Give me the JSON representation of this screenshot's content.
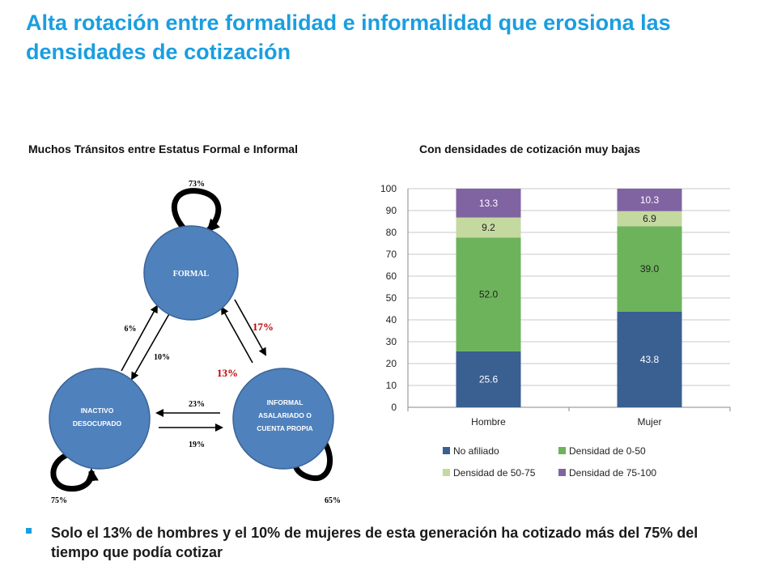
{
  "title": "Alta rotación entre formalidad e informalidad que erosiona las densidades de cotización",
  "left_panel": {
    "subtitle": "Muchos Tránsitos entre Estatus Formal e Informal",
    "nodes": {
      "formal": "FORMAL",
      "inactive_line1": "INACTIVO",
      "inactive_line2": "DESOCUPADO",
      "informal_line1": "INFORMAL",
      "informal_line2": "ASALARIADO O",
      "informal_line3": "CUENTA PROPIA"
    },
    "flows": {
      "formal_stay": "73%",
      "inactive_stay": "75%",
      "informal_stay": "65%",
      "inactive_to_formal": "6%",
      "formal_to_inactive": "10%",
      "formal_to_informal": "17%",
      "informal_to_formal": "13%",
      "informal_to_inactive": "23%",
      "inactive_to_informal": "19%"
    },
    "colors": {
      "node": "#4f81bd",
      "node_stroke": "#3a6496",
      "highlight": "#c00000"
    }
  },
  "right_panel": {
    "subtitle": "Con densidades de cotización muy bajas"
  },
  "chart_data": {
    "type": "bar",
    "stacked": true,
    "categories": [
      "Hombre",
      "Mujer"
    ],
    "series": [
      {
        "name": "No afiliado",
        "values": [
          25.6,
          43.8
        ],
        "color": "#3a5f91"
      },
      {
        "name": "Densidad de 0-50",
        "values": [
          52.0,
          39.0
        ],
        "color": "#6db35b"
      },
      {
        "name": "Densidad de 50-75",
        "values": [
          9.2,
          6.9
        ],
        "color": "#c4d9a0"
      },
      {
        "name": "Densidad de 75-100",
        "values": [
          13.3,
          10.3
        ],
        "color": "#8064a2"
      }
    ],
    "y_ticks": [
      0,
      10,
      20,
      30,
      40,
      50,
      60,
      70,
      80,
      90,
      100
    ],
    "ylim": [
      0,
      100
    ],
    "grid": true,
    "legend_position": "bottom"
  },
  "bullet": {
    "text": "Solo el 13% de hombres y el 10% de mujeres de esta generación ha cotizado más del 75% del tiempo que podía cotizar"
  }
}
